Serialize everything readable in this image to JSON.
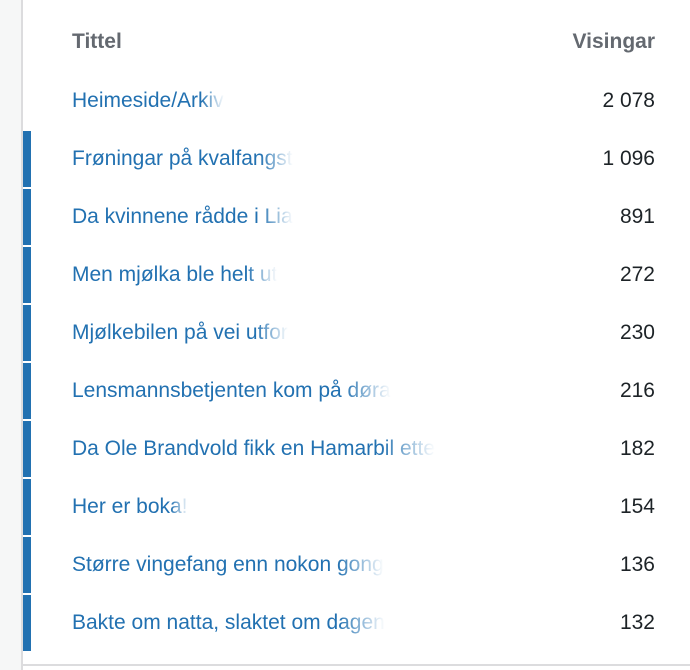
{
  "table": {
    "headers": {
      "title": "Tittel",
      "views": "Visingar"
    },
    "accent_color": "#2271b1",
    "rows": [
      {
        "title": "Heimeside/Arkiv",
        "views": "2 078",
        "bar": false
      },
      {
        "title": "Frøningar på kvalfangst",
        "views": "1 096",
        "bar": true
      },
      {
        "title": "Da kvinnene rådde i Lia",
        "views": "891",
        "bar": true
      },
      {
        "title": "Men mjølka ble helt ut",
        "views": "272",
        "bar": true
      },
      {
        "title": "Mjølkebilen på vei utfor",
        "views": "230",
        "bar": true
      },
      {
        "title": "Lensmannsbetjenten kom på døra",
        "views": "216",
        "bar": true
      },
      {
        "title": "Da Ole Brandvold fikk en Hamarbil ette",
        "views": "182",
        "bar": true
      },
      {
        "title": "Her er boka!",
        "views": "154",
        "bar": true
      },
      {
        "title": "Større vingefang enn nokon gong",
        "views": "136",
        "bar": true
      },
      {
        "title": "Bakte om natta, slaktet om dagen",
        "views": "132",
        "bar": true
      }
    ]
  }
}
